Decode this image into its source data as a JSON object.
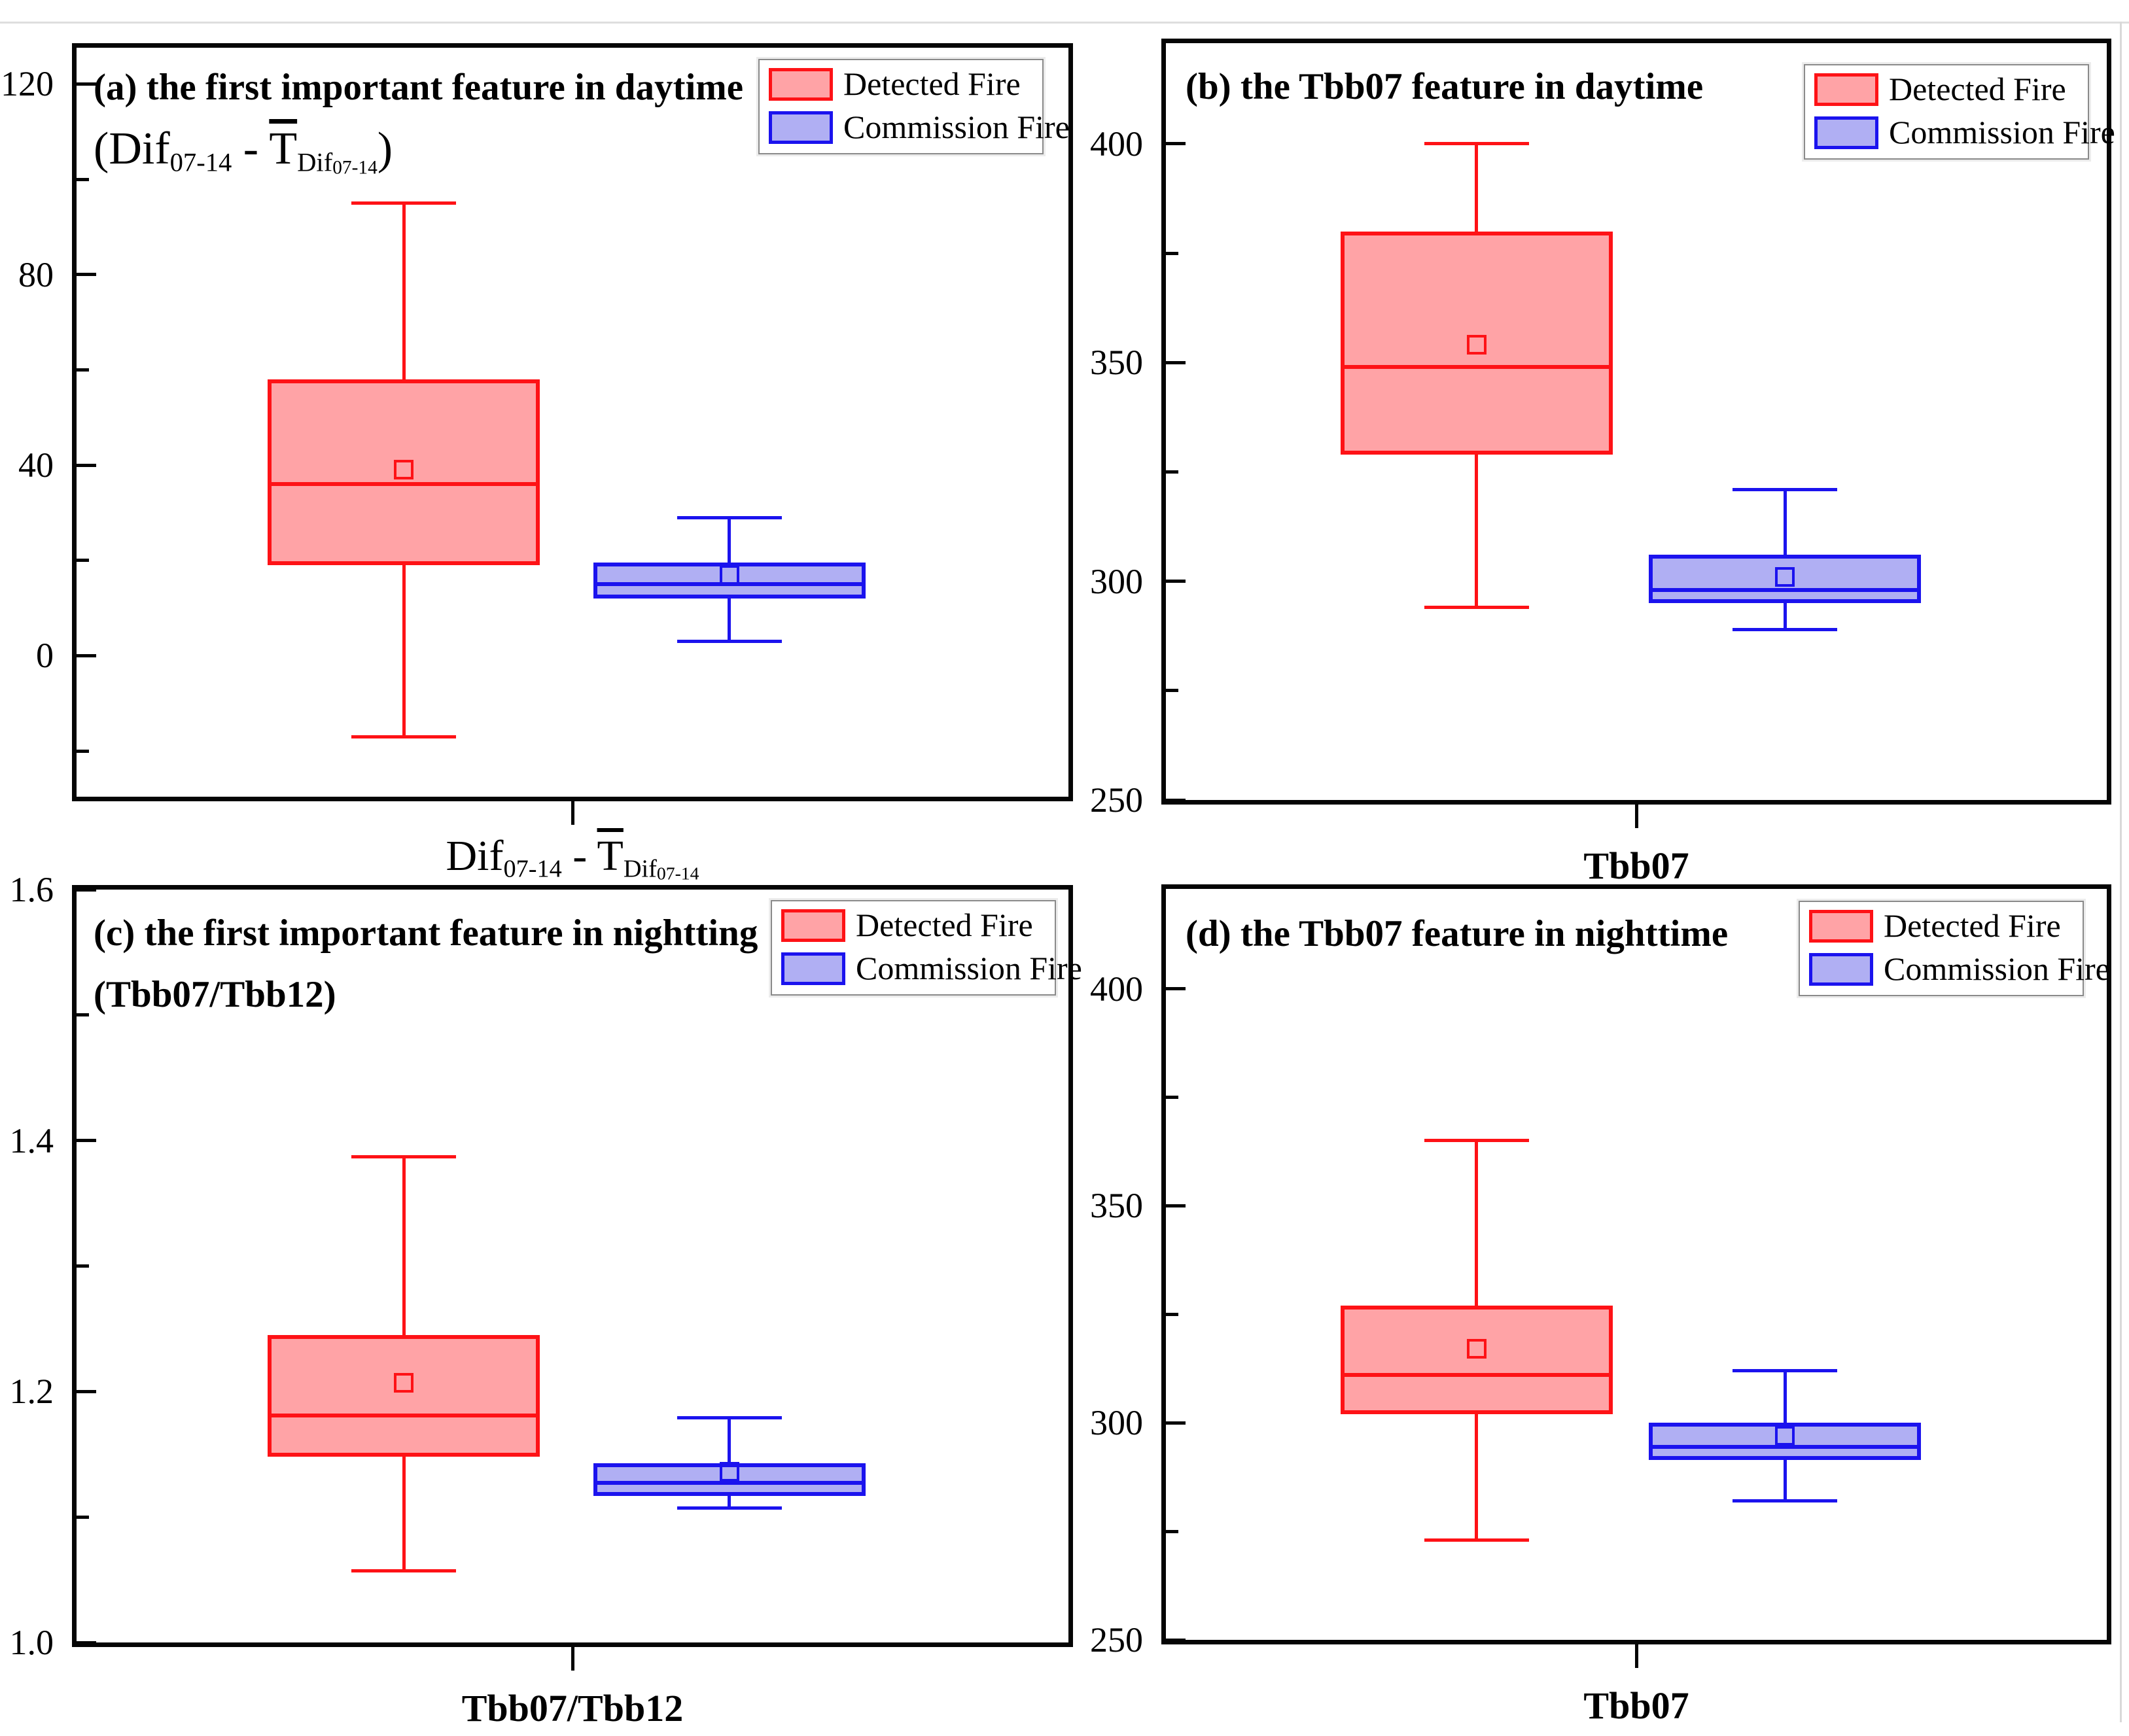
{
  "figure": {
    "legend": {
      "items": [
        {
          "key": "detected",
          "label": "Detected Fire"
        },
        {
          "key": "commission",
          "label": "Commission Fire"
        }
      ]
    },
    "colors": {
      "detected_stroke": "#fe1216",
      "detected_fill": "#ffa3a6",
      "commission_stroke": "#1b13ee",
      "commission_fill": "#b0aff3",
      "axis": "#050505",
      "legend_border": "#8a8a8a",
      "page_edge": "#dedede"
    }
  },
  "chart_data": [
    {
      "panel": "a",
      "type": "box",
      "title": "(a) the first important feature in daytime",
      "subtitle_segments": [
        {
          "t": "("
        },
        {
          "t": "Dif"
        },
        {
          "t": "07-14",
          "s": "sub"
        },
        {
          "t": " - "
        },
        {
          "t": "T",
          "s": "over"
        },
        {
          "t": "Dif",
          "s": "sub"
        },
        {
          "t": "07-14",
          "s": "subsub"
        },
        {
          "t": ")"
        }
      ],
      "xlabel_segments": [
        {
          "t": "Dif"
        },
        {
          "t": "07-14",
          "s": "sub"
        },
        {
          "t": " - "
        },
        {
          "t": "T",
          "s": "over"
        },
        {
          "t": "Dif",
          "s": "sub"
        },
        {
          "t": "07-14",
          "s": "subsub"
        }
      ],
      "ylim": [
        -29.6,
        127.6
      ],
      "grid": false,
      "legend_position": "top-right",
      "yticks": [
        {
          "v": 120,
          "l": "120"
        },
        {
          "v": 100
        },
        {
          "v": 80,
          "l": "80"
        },
        {
          "v": 60
        },
        {
          "v": 40,
          "l": "40"
        },
        {
          "v": 20
        },
        {
          "v": 0,
          "l": "0"
        },
        {
          "v": -20
        }
      ],
      "series": [
        {
          "name": "Detected Fire",
          "key": "detected",
          "whisker_low": -17,
          "q1": 19,
          "median": 36,
          "mean": 39,
          "q3": 58,
          "whisker_high": 95
        },
        {
          "name": "Commission Fire",
          "key": "commission",
          "whisker_low": 3,
          "q1": 12,
          "median": 15,
          "mean": 17,
          "q3": 19.5,
          "whisker_high": 29
        }
      ]
    },
    {
      "panel": "b",
      "type": "box",
      "title": "(b) the Tbb07 feature in daytime",
      "xlabel": "Tbb07",
      "ylim": [
        250,
        423
      ],
      "grid": false,
      "legend_position": "top-right",
      "yticks": [
        {
          "v": 400,
          "l": "400"
        },
        {
          "v": 375
        },
        {
          "v": 350,
          "l": "350"
        },
        {
          "v": 325
        },
        {
          "v": 300,
          "l": "300"
        },
        {
          "v": 275
        },
        {
          "v": 250,
          "l": "250"
        }
      ],
      "series": [
        {
          "name": "Detected Fire",
          "key": "detected",
          "whisker_low": 294,
          "q1": 329,
          "median": 349,
          "mean": 354,
          "q3": 380,
          "whisker_high": 400
        },
        {
          "name": "Commission Fire",
          "key": "commission",
          "whisker_low": 289,
          "q1": 295,
          "median": 298,
          "mean": 301,
          "q3": 306,
          "whisker_high": 321
        }
      ]
    },
    {
      "panel": "c",
      "type": "box",
      "title": "(c) the first important feature in nightting",
      "subtitle": "(Tbb07/Tbb12)",
      "xlabel": "Tbb07/Tbb12",
      "ylim": [
        1.0,
        1.6
      ],
      "grid": false,
      "legend_position": "top-right",
      "yticks": [
        {
          "v": 1.6,
          "l": "1.6"
        },
        {
          "v": 1.5
        },
        {
          "v": 1.4,
          "l": "1.4"
        },
        {
          "v": 1.3
        },
        {
          "v": 1.2,
          "l": "1.2"
        },
        {
          "v": 1.1
        },
        {
          "v": 1.0,
          "l": "1.0"
        }
      ],
      "series": [
        {
          "name": "Detected Fire",
          "key": "detected",
          "whisker_low": 1.057,
          "q1": 1.148,
          "median": 1.181,
          "mean": 1.207,
          "q3": 1.245,
          "whisker_high": 1.387
        },
        {
          "name": "Commission Fire",
          "key": "commission",
          "whisker_low": 1.107,
          "q1": 1.117,
          "median": 1.127,
          "mean": 1.136,
          "q3": 1.143,
          "whisker_high": 1.179
        }
      ]
    },
    {
      "panel": "d",
      "type": "box",
      "title": "(d) the Tbb07 feature in nighttime",
      "xlabel": "Tbb07",
      "ylim": [
        250,
        423
      ],
      "grid": false,
      "legend_position": "top-right",
      "yticks": [
        {
          "v": 400,
          "l": "400"
        },
        {
          "v": 375
        },
        {
          "v": 350,
          "l": "350"
        },
        {
          "v": 325
        },
        {
          "v": 300,
          "l": "300"
        },
        {
          "v": 275
        },
        {
          "v": 250,
          "l": "250"
        }
      ],
      "series": [
        {
          "name": "Detected Fire",
          "key": "detected",
          "whisker_low": 273,
          "q1": 302,
          "median": 311,
          "mean": 317,
          "q3": 327,
          "whisker_high": 365
        },
        {
          "name": "Commission Fire",
          "key": "commission",
          "whisker_low": 282,
          "q1": 291.5,
          "median": 294.5,
          "mean": 297,
          "q3": 300,
          "whisker_high": 312
        }
      ]
    }
  ]
}
